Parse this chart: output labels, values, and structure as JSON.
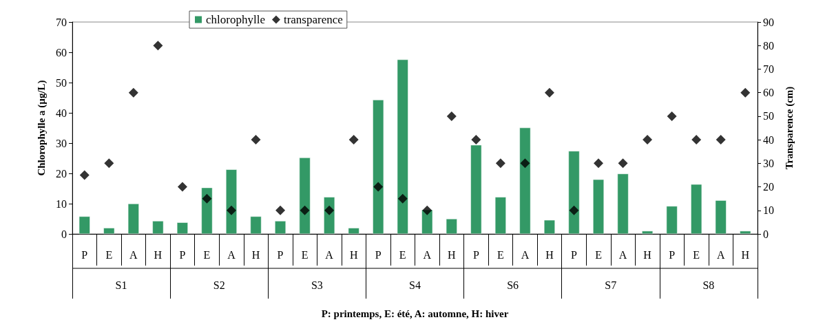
{
  "chart_data": {
    "type": "bar",
    "categories": [
      "P",
      "E",
      "A",
      "H",
      "P",
      "E",
      "A",
      "H",
      "P",
      "E",
      "A",
      "H",
      "P",
      "E",
      "A",
      "H",
      "P",
      "E",
      "A",
      "H",
      "P",
      "E",
      "A",
      "H",
      "P",
      "E",
      "A",
      "H"
    ],
    "series": [
      {
        "name": "chlorophylle",
        "color": "#339966",
        "values": [
          5.8,
          2,
          10,
          4.3,
          3.8,
          15.3,
          21.3,
          5.8,
          4.3,
          25.2,
          12.2,
          2,
          44.3,
          57.6,
          8,
          5,
          29.4,
          12.2,
          35.1,
          4.6,
          27.4,
          18,
          19.9,
          1,
          9.2,
          16.4,
          11.1,
          1
        ]
      },
      {
        "name": "transparence",
        "type": "scatter",
        "axis": "y2",
        "color": "#000000",
        "marker": "diamond",
        "values": [
          25,
          30,
          60,
          80,
          20,
          15,
          10,
          40,
          10,
          10,
          10,
          40,
          20,
          15,
          10,
          50,
          40,
          30,
          30,
          60,
          10,
          30,
          30,
          40,
          50,
          40,
          40,
          60
        ]
      }
    ],
    "annotations": [
      "S1",
      "S2",
      "S3",
      "S4",
      "S6",
      "S7",
      "S8"
    ],
    "xlabel": "P: printemps, E: été, A: automne, H: hiver",
    "ylabel": "Chlorophylle a (µg/L)",
    "y2label": "Transparence (cm)",
    "ylim": [
      0,
      70
    ],
    "yticks": [
      0,
      10,
      20,
      30,
      40,
      50,
      60,
      70
    ],
    "y2lim": [
      0,
      90
    ],
    "y2ticks": [
      0,
      10,
      20,
      30,
      40,
      50,
      60,
      70,
      80,
      90
    ],
    "grid": false,
    "legend": "top"
  }
}
